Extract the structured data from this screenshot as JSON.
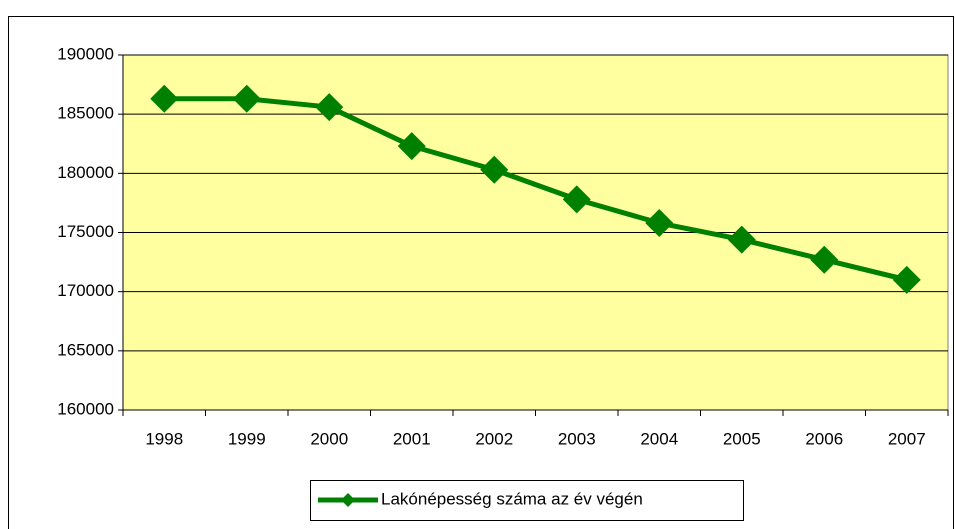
{
  "chart_data": {
    "type": "line",
    "categories": [
      "1998",
      "1999",
      "2000",
      "2001",
      "2002",
      "2003",
      "2004",
      "2005",
      "2006",
      "2007"
    ],
    "series": [
      {
        "name": "Lakónépesség száma az év végén",
        "color": "#008000",
        "values": [
          186300,
          186300,
          185600,
          182300,
          180300,
          177800,
          175800,
          174400,
          172700,
          171000
        ]
      }
    ],
    "ylim": [
      160000,
      190000
    ],
    "yticks": [
      160000,
      165000,
      170000,
      175000,
      180000,
      185000,
      190000
    ],
    "grid": true,
    "plot_background": "#ffff9f",
    "legend": "bottom"
  }
}
